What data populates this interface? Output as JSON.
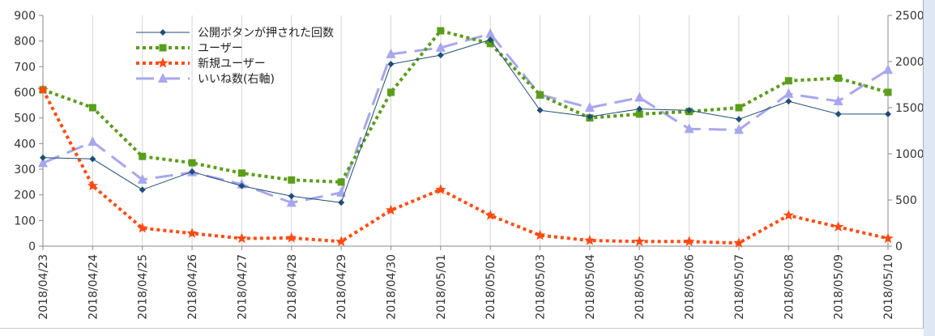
{
  "chart_data": {
    "type": "line",
    "title": "",
    "xlabel": "",
    "ylabel": "",
    "categories": [
      "2018/04/23",
      "2018/04/24",
      "2018/04/25",
      "2018/04/26",
      "2018/04/27",
      "2018/04/28",
      "2018/04/29",
      "2018/04/30",
      "2018/05/01",
      "2018/05/02",
      "2018/05/03",
      "2018/05/04",
      "2018/05/05",
      "2018/05/06",
      "2018/05/07",
      "2018/05/08",
      "2018/05/09",
      "2018/05/10"
    ],
    "ylim": [
      0,
      900
    ],
    "yticks": [
      "0",
      "100",
      "200",
      "300",
      "400",
      "500",
      "600",
      "700",
      "800",
      "900"
    ],
    "y2lim": [
      0,
      2500
    ],
    "y2ticks": [
      "0",
      "500",
      "1000",
      "1500",
      "2000",
      "2500"
    ],
    "grid": "vertical",
    "legend_position": "top-left",
    "series": [
      {
        "name": "公開ボタンが押された回数",
        "axis": "left",
        "color": "#1f4e79",
        "style": "solid",
        "marker": "diamond",
        "values": [
          345,
          340,
          220,
          290,
          235,
          195,
          170,
          710,
          745,
          805,
          530,
          505,
          535,
          530,
          495,
          565,
          515,
          515
        ]
      },
      {
        "name": "ユーザー",
        "axis": "left",
        "color": "#5a9e1a",
        "style": "dotted",
        "marker": "square",
        "values": [
          610,
          540,
          350,
          325,
          285,
          258,
          250,
          600,
          840,
          790,
          590,
          500,
          515,
          525,
          540,
          645,
          655,
          600
        ]
      },
      {
        "name": "新規ユーザー",
        "axis": "left",
        "color": "#ff4a12",
        "style": "dotted",
        "marker": "star",
        "values": [
          610,
          235,
          70,
          50,
          30,
          32,
          18,
          140,
          220,
          120,
          42,
          22,
          18,
          18,
          12,
          120,
          75,
          30
        ]
      },
      {
        "name": "いいね数(右軸)",
        "axis": "right",
        "color": "#a7a7f0",
        "style": "dashed",
        "marker": "triangle",
        "values": [
          900,
          1130,
          720,
          800,
          670,
          470,
          580,
          2080,
          2150,
          2300,
          1640,
          1500,
          1610,
          1270,
          1260,
          1650,
          1570,
          1910
        ]
      }
    ]
  }
}
